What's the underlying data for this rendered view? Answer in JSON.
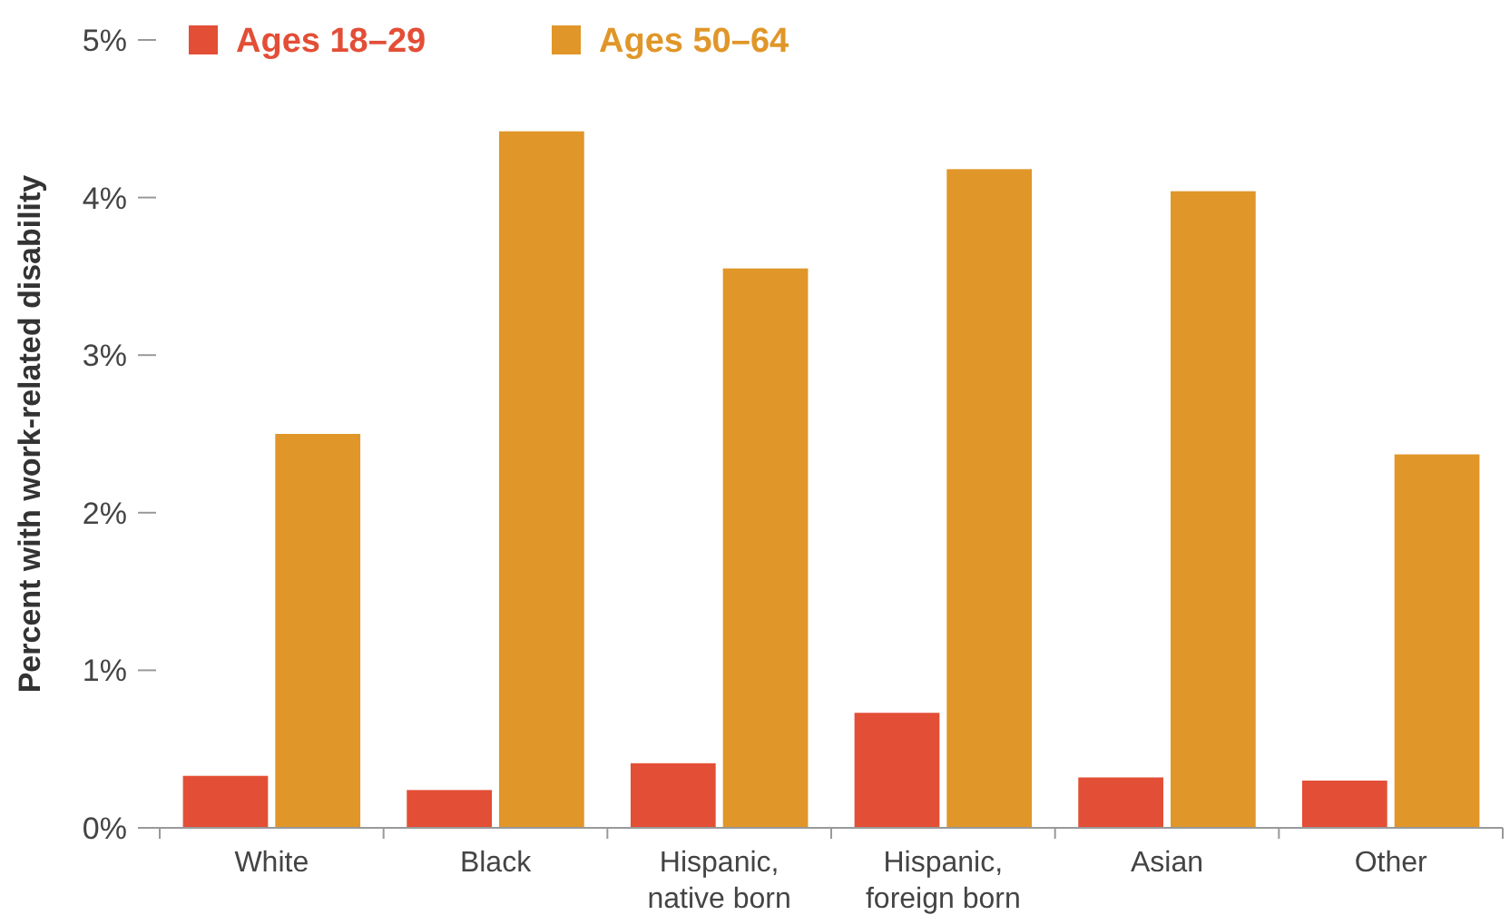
{
  "chart_data": {
    "type": "bar",
    "ylabel": "Percent with work-related disability",
    "categories": [
      "White",
      "Black",
      "Hispanic, native born",
      "Hispanic, foreign born",
      "Asian",
      "Other"
    ],
    "series": [
      {
        "name": "Ages 18–29",
        "color": "#e34e36",
        "values": [
          0.33,
          0.24,
          0.41,
          0.73,
          0.32,
          0.3
        ]
      },
      {
        "name": "Ages 50–64",
        "color": "#e09628",
        "values": [
          2.5,
          4.42,
          3.55,
          4.18,
          4.04,
          2.37
        ]
      }
    ],
    "ylim": [
      0,
      5
    ],
    "yticks": [
      {
        "value": 0,
        "label": "0%"
      },
      {
        "value": 1,
        "label": "1%"
      },
      {
        "value": 2,
        "label": "2%"
      },
      {
        "value": 3,
        "label": "3%"
      },
      {
        "value": 4,
        "label": "4%"
      },
      {
        "value": 5,
        "label": "5%"
      }
    ],
    "grid": false,
    "legend": "top left"
  }
}
